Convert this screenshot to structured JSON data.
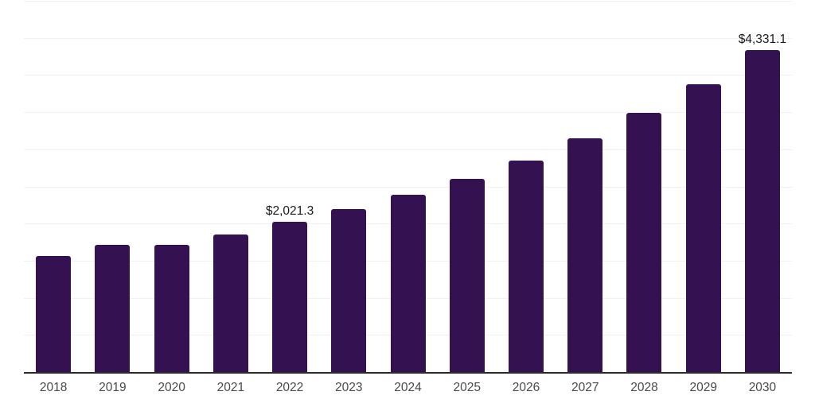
{
  "chart_data": {
    "type": "bar",
    "title": "",
    "xlabel": "",
    "ylabel": "",
    "categories": [
      "2018",
      "2019",
      "2020",
      "2021",
      "2022",
      "2023",
      "2024",
      "2025",
      "2026",
      "2027",
      "2028",
      "2029",
      "2030"
    ],
    "values": [
      1560,
      1715,
      1710,
      1855,
      2021.3,
      2200,
      2390,
      2600,
      2850,
      3150,
      3490,
      3880,
      4331.1
    ],
    "annotations": [
      {
        "category": "2022",
        "text": "$2,021.3"
      },
      {
        "category": "2030",
        "text": "$4,331.1"
      }
    ],
    "ylim": [
      0,
      5000
    ],
    "gridline_step": 500,
    "grid": "horizontal",
    "y_tick_labels_shown": false,
    "legend": "none"
  },
  "style": {
    "bar_color": "#341150",
    "gridline_color": "#f1f1f1",
    "axis_color": "#2b2b2b",
    "tick_label_color": "#4a4a4a",
    "value_label_color": "#1a1a1a",
    "background": "#ffffff"
  }
}
